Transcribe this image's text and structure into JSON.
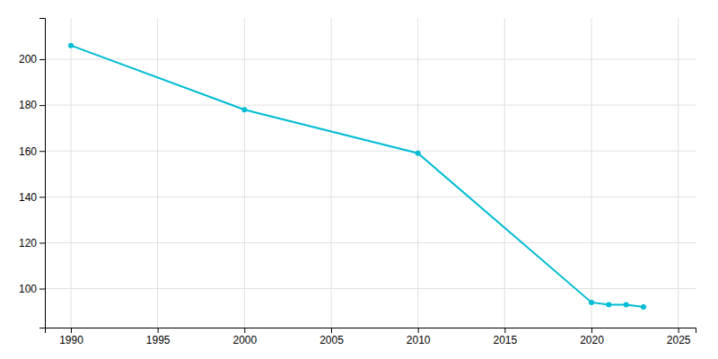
{
  "chart_data": {
    "type": "line",
    "x": [
      1990,
      2000,
      2010,
      2020,
      2021,
      2022,
      2023
    ],
    "values": [
      206,
      178,
      159,
      94,
      93,
      93,
      92
    ],
    "color": "#00bcd4",
    "marker": "circle",
    "xlim": [
      1988.5,
      2026
    ],
    "ylim": [
      83,
      218
    ],
    "xticks": [
      1990,
      1995,
      2000,
      2005,
      2010,
      2015,
      2020,
      2025
    ],
    "yticks": [
      100,
      120,
      140,
      160,
      180,
      200
    ],
    "grid": true
  }
}
